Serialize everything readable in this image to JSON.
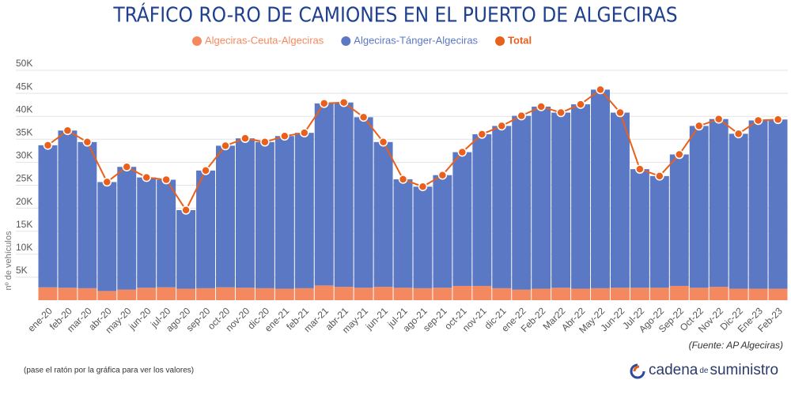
{
  "chart_data": {
    "type": "stacked-bar-line",
    "title": "TRÁFICO RO-RO DE CAMIONES EN EL PUERTO DE ALGECIRAS",
    "y_label": "nº de vehículos",
    "source": "(Fuente: AP Algeciras)",
    "note": "(pase el ratón por la gráfica para ver los valores)",
    "logo": {
      "part1": "cadena",
      "part2": "de",
      "part3": "suministro"
    },
    "categories": [
      "ene-20",
      "feb-20",
      "mar-20",
      "abr-20",
      "may-20",
      "jun-20",
      "jul-20",
      "ago-20",
      "sep-20",
      "oct-20",
      "nov-20",
      "dic-20",
      "ene-21",
      "feb-21",
      "mar-21",
      "abr-21",
      "may-21",
      "jun-21",
      "jul-21",
      "ago-21",
      "sep-21",
      "oct-21",
      "nov-21",
      "dic-21",
      "ene-22",
      "Feb-22",
      "Mar22",
      "Abr-22",
      "May-22",
      "Jun-22",
      "Jul-22",
      "Ago-22",
      "Sep-22",
      "Oct-22",
      "Nov-22",
      "Dic-22",
      "Ene-23",
      "Feb-23"
    ],
    "series": [
      {
        "name": "Algeciras-Ceuta-Algeciras",
        "color": "#f4895f",
        "values": [
          2800,
          2700,
          2600,
          2000,
          2300,
          2700,
          2800,
          2500,
          2600,
          2800,
          2700,
          2600,
          2500,
          2600,
          3200,
          2900,
          2700,
          2900,
          2700,
          2600,
          2700,
          3100,
          3100,
          2600,
          2300,
          2500,
          2700,
          2500,
          2600,
          2700,
          2700,
          2700,
          3100,
          2700,
          2900,
          2500,
          2500,
          2500
        ]
      },
      {
        "name": "Algeciras-Tánger-Algeciras",
        "color": "#5b78c4",
        "values": [
          30900,
          34200,
          31800,
          23700,
          26700,
          24000,
          23400,
          17100,
          25600,
          30800,
          32500,
          31800,
          33200,
          33800,
          39600,
          40100,
          37100,
          31500,
          23600,
          22100,
          24500,
          29100,
          33000,
          35300,
          37800,
          39600,
          38100,
          40100,
          43200,
          38100,
          25800,
          24300,
          28600,
          35200,
          36500,
          33700,
          36600,
          36800
        ]
      },
      {
        "name": "Total",
        "color": "#e8601c",
        "values": [
          33700,
          36900,
          34400,
          25700,
          29000,
          26700,
          26200,
          19600,
          28200,
          33600,
          35200,
          34400,
          35700,
          36400,
          42800,
          43000,
          39800,
          34400,
          26300,
          24700,
          27200,
          32200,
          36100,
          37900,
          40100,
          42100,
          40800,
          42600,
          45800,
          40800,
          28500,
          27000,
          31700,
          37900,
          39400,
          36200,
          39100,
          39300
        ]
      }
    ],
    "ylim": [
      0,
      50000
    ],
    "yticks": [
      {
        "value": 5000,
        "label": "5K"
      },
      {
        "value": 10000,
        "label": "10K"
      },
      {
        "value": 15000,
        "label": "15K"
      },
      {
        "value": 20000,
        "label": "20K"
      },
      {
        "value": 25000,
        "label": "25K"
      },
      {
        "value": 30000,
        "label": "30K"
      },
      {
        "value": 35000,
        "label": "35K"
      },
      {
        "value": 40000,
        "label": "40K"
      },
      {
        "value": 45000,
        "label": "45K"
      },
      {
        "value": 50000,
        "label": "50K"
      }
    ],
    "grid": true
  }
}
